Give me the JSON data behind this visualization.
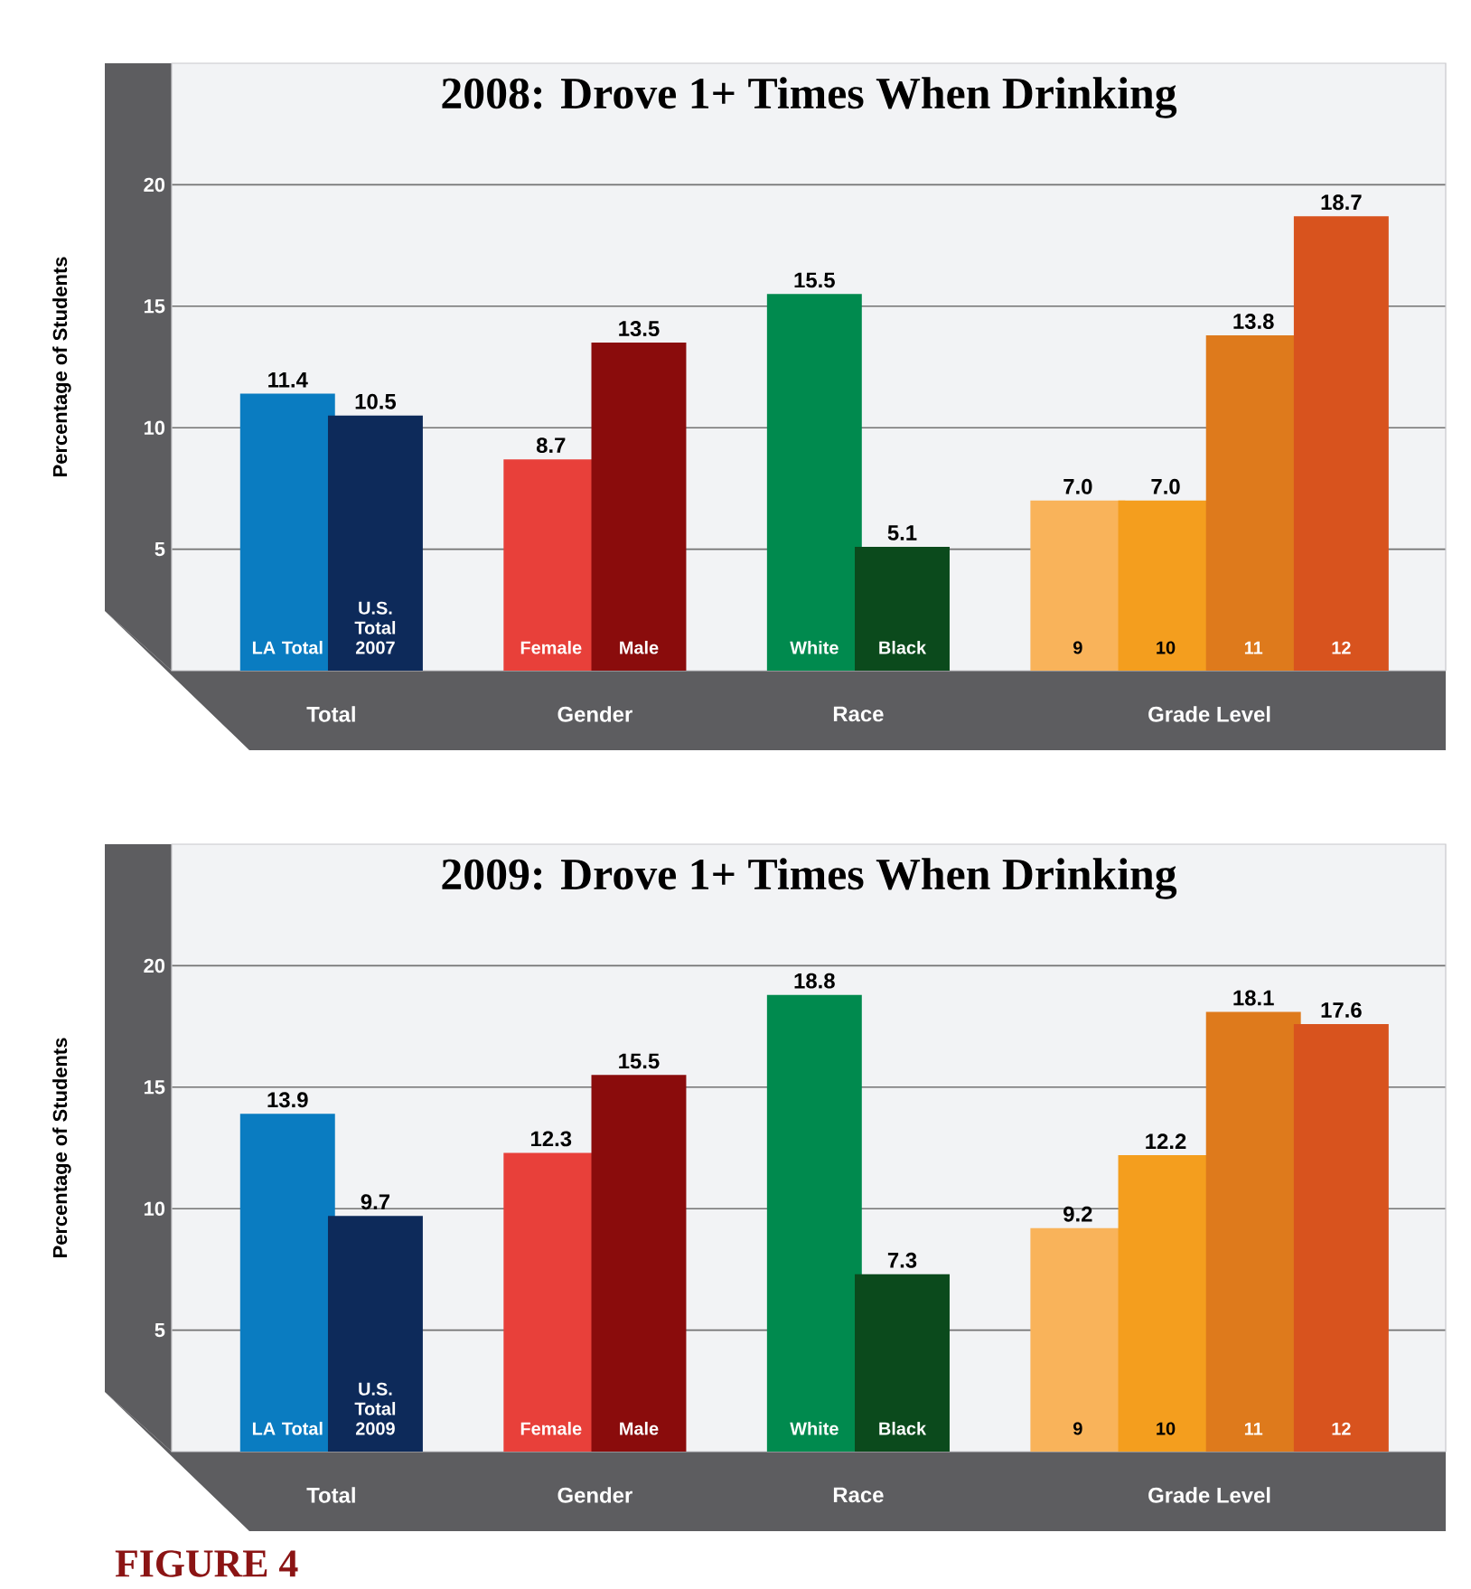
{
  "chart_data": [
    {
      "type": "bar",
      "title": "2008: Drove 1+ Times When Drinking",
      "ylabel": "Percentage of Students",
      "categories": [
        "LA Total",
        "U.S. Total 2007",
        null,
        "Female",
        "Male",
        null,
        "White",
        "Black",
        null,
        "9",
        "10",
        "11",
        "12"
      ],
      "values": [
        11.4,
        10.5,
        null,
        8.7,
        13.5,
        null,
        15.5,
        5.1,
        null,
        7.0,
        7.0,
        13.8,
        18.7
      ],
      "value_labels": [
        "11.4",
        "10.5",
        null,
        "8.7",
        "13.5",
        null,
        "15.5",
        "5.1",
        null,
        "7.0",
        "7.0",
        "13.8",
        "18.7"
      ],
      "colors": [
        "#0a7cc1",
        "#0d2a5a",
        null,
        "#e8403a",
        "#8a0c0c",
        null,
        "#008a4e",
        "#0b4a1c",
        null,
        "#f9b35a",
        "#f49e1e",
        "#de7a1c",
        "#d8531e"
      ],
      "ylim": [
        0,
        25
      ],
      "yticks": [
        5,
        10,
        15,
        20
      ],
      "grid": "y",
      "annotations": [
        "Total",
        "Gender",
        "Race",
        "Grade Level"
      ]
    },
    {
      "type": "bar",
      "title": "2009: Drove 1+ Times When Drinking",
      "ylabel": "Percentage of Students",
      "categories": [
        "LA Total",
        "U.S. Total 2009",
        null,
        "Female",
        "Male",
        null,
        "White",
        "Black",
        null,
        "9",
        "10",
        "11",
        "12"
      ],
      "values": [
        13.9,
        9.7,
        null,
        12.3,
        15.5,
        null,
        18.8,
        7.3,
        null,
        9.2,
        12.2,
        18.1,
        17.6
      ],
      "value_labels": [
        "13.9",
        "9.7",
        null,
        "12.3",
        "15.5",
        null,
        "18.8",
        "7.3",
        null,
        "9.2",
        "12.2",
        "18.1",
        "17.6"
      ],
      "colors": [
        "#0a7cc1",
        "#0d2a5a",
        null,
        "#e8403a",
        "#8a0c0c",
        null,
        "#008a4e",
        "#0b4a1c",
        null,
        "#f9b35a",
        "#f49e1e",
        "#de7a1c",
        "#d8531e"
      ],
      "ylim": [
        0,
        25
      ],
      "yticks": [
        5,
        10,
        15,
        20
      ],
      "grid": "y",
      "annotations": [
        "Total",
        "Gender",
        "Race",
        "Grade Level",
        "FIGURE 4"
      ]
    }
  ]
}
